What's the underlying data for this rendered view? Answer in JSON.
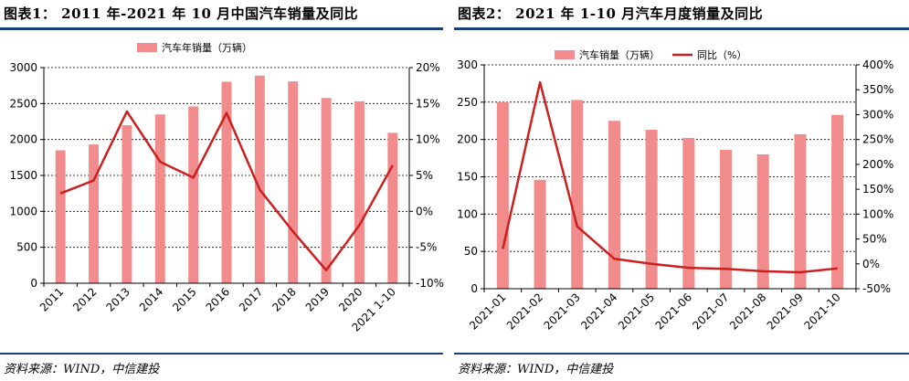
{
  "panels": [
    {
      "title": "图表1：  2011 年-2021 年 10 月中国汽车销量及同比",
      "source": "资料来源：WIND，中信建投"
    },
    {
      "title": "图表2：  2021 年 1-10 月汽车月度销量及同比",
      "source": "资料来源：WIND，中信建投"
    }
  ],
  "chart_data": [
    {
      "type": "bar",
      "categories": [
        "2011",
        "2012",
        "2013",
        "2014",
        "2015",
        "2016",
        "2017",
        "2018",
        "2019",
        "2020",
        "2021 1-10"
      ],
      "series": [
        {
          "name": "汽车年销量（万辆）",
          "kind": "bar",
          "axis": "left",
          "values": [
            1850,
            1931,
            2198,
            2349,
            2460,
            2803,
            2888,
            2808,
            2577,
            2531,
            2093
          ]
        },
        {
          "name": "",
          "kind": "line",
          "axis": "right",
          "values": [
            2.5,
            4.3,
            13.9,
            6.9,
            4.7,
            13.7,
            3.0,
            -2.8,
            -8.2,
            -1.9,
            6.4
          ]
        }
      ],
      "ylim_left": [
        0,
        3000
      ],
      "yticks_left": [
        "0",
        "500",
        "1000",
        "1500",
        "2000",
        "2500",
        "3000"
      ],
      "ylim_right": [
        -10,
        20
      ],
      "yticks_right": [
        "-10%",
        "-5%",
        "0%",
        "5%",
        "10%",
        "15%",
        "20%"
      ],
      "legend": "top-center",
      "grid": "horizontal",
      "colors": {
        "bar": "#f28b8b",
        "line": "#cc1f1f"
      }
    },
    {
      "type": "bar",
      "categories": [
        "2021-01",
        "2021-02",
        "2021-03",
        "2021-04",
        "2021-05",
        "2021-06",
        "2021-07",
        "2021-08",
        "2021-09",
        "2021-10"
      ],
      "series": [
        {
          "name": "汽车销量（万辆）",
          "kind": "bar",
          "axis": "left",
          "values": [
            250,
            146,
            253,
            225,
            213,
            202,
            186,
            180,
            207,
            233
          ]
        },
        {
          "name": "同比（%）",
          "kind": "line",
          "axis": "right",
          "values": [
            30,
            365,
            75,
            10,
            0,
            -8,
            -10,
            -15,
            -17,
            -9
          ]
        }
      ],
      "ylim_left": [
        0,
        300
      ],
      "yticks_left": [
        "0",
        "50",
        "100",
        "150",
        "200",
        "250",
        "300"
      ],
      "ylim_right": [
        -50,
        400
      ],
      "yticks_right": [
        "-50%",
        "0%",
        "50%",
        "100%",
        "150%",
        "200%",
        "250%",
        "300%",
        "350%",
        "400%"
      ],
      "legend": "top-center",
      "grid": "horizontal",
      "colors": {
        "bar": "#f28b8b",
        "line": "#cc1f1f"
      }
    }
  ]
}
